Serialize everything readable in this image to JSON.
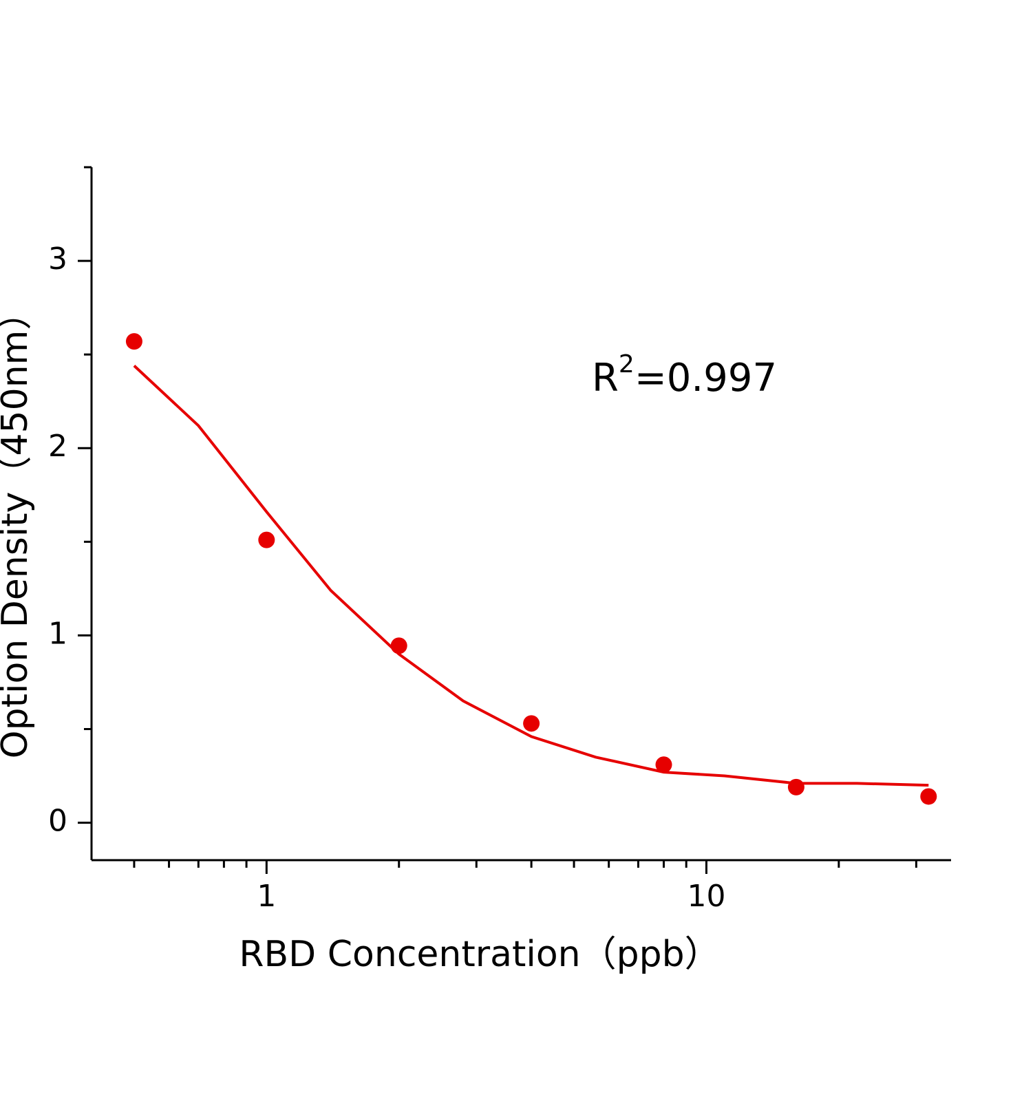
{
  "chart_data": {
    "type": "scatter",
    "x_label": "RBD  Concentration（ppb）",
    "y_label": "Option Density（450nm）",
    "annotation": {
      "base": "R",
      "superscript": "2",
      "text": "=0.997"
    },
    "x_scale": "log",
    "xlim": [
      0.4,
      36
    ],
    "xticks": [
      1,
      10
    ],
    "xminorticks": [
      0.5,
      0.6,
      0.7,
      0.8,
      0.9,
      2,
      3,
      4,
      5,
      6,
      7,
      8,
      9,
      20,
      30
    ],
    "ylim": [
      -0.2,
      3.5
    ],
    "yticks": [
      0,
      1,
      2,
      3
    ],
    "yminorticks": [
      0.5,
      1.5,
      2.5,
      3.5
    ],
    "series": [
      {
        "style": "points",
        "color": "#e60000",
        "x": [
          0.5,
          1,
          2,
          4,
          8,
          16,
          32
        ],
        "values": [
          2.57,
          1.51,
          0.945,
          0.53,
          0.31,
          0.19,
          0.14
        ]
      },
      {
        "style": "line",
        "color": "#e60000",
        "x": [
          0.5,
          0.7,
          1,
          1.4,
          2,
          2.8,
          4,
          5.6,
          8,
          11,
          16,
          22,
          32
        ],
        "values": [
          2.44,
          2.12,
          1.66,
          1.24,
          0.9,
          0.65,
          0.46,
          0.35,
          0.27,
          0.25,
          0.21,
          0.21,
          0.2
        ]
      }
    ]
  }
}
